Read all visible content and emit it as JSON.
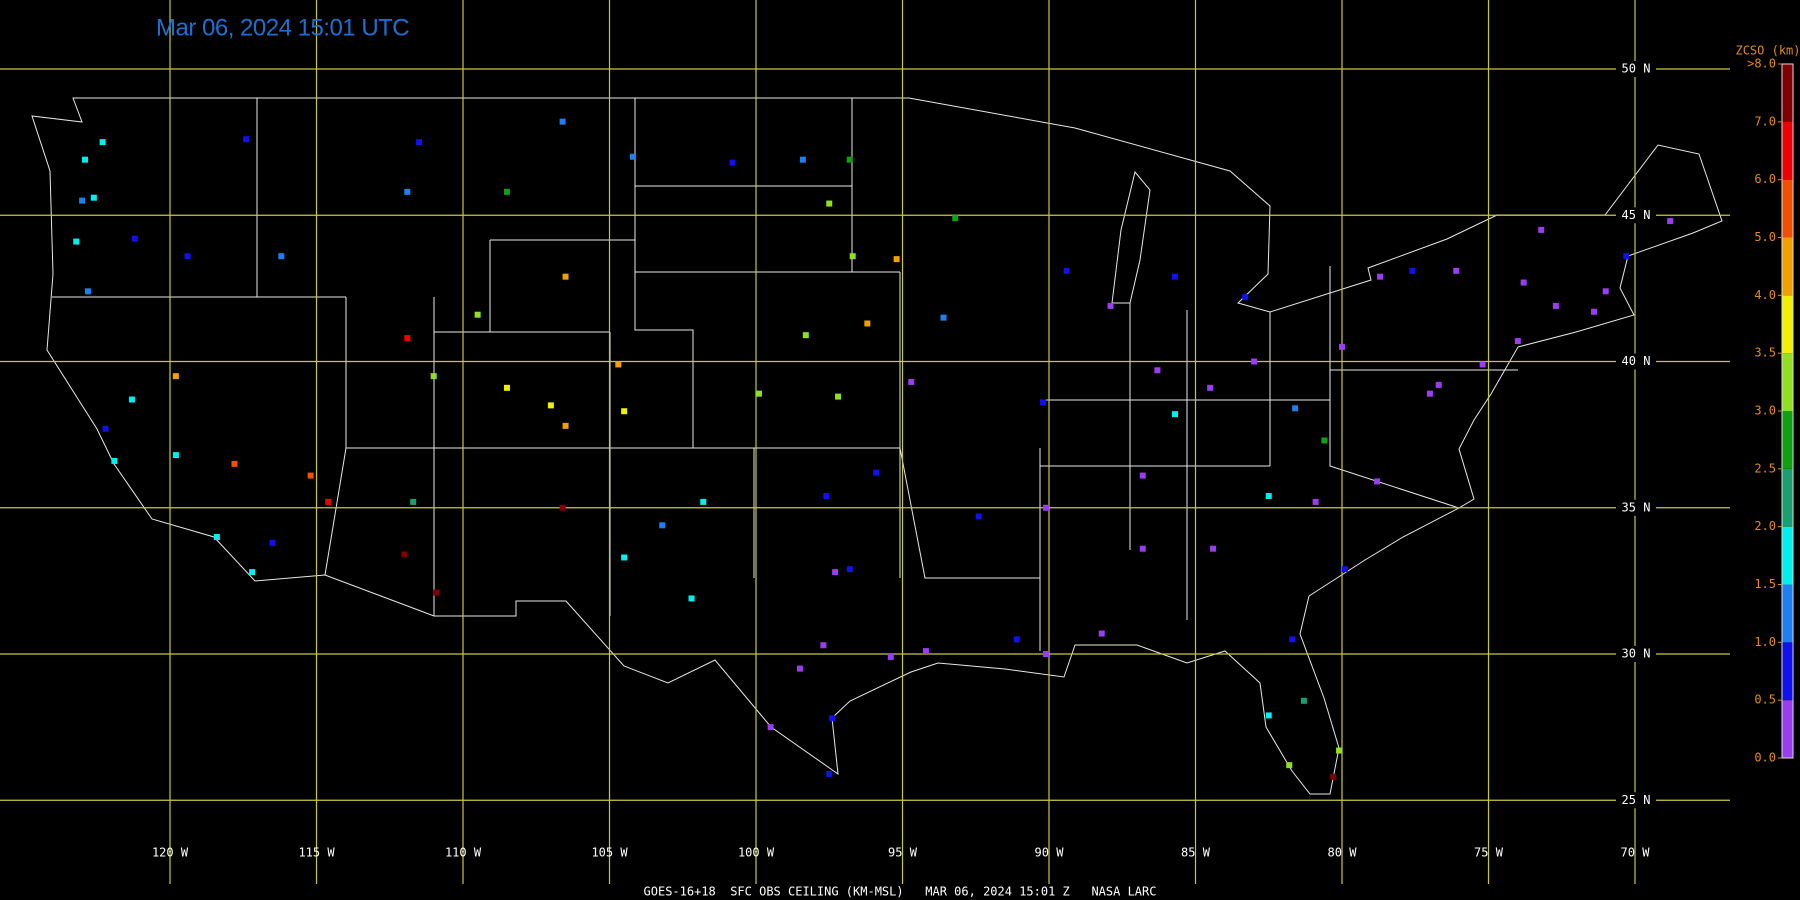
{
  "title": "Mar 06, 2024 15:01 UTC",
  "footer": "GOES-16+18  SFC OBS CEILING (KM-MSL)   MAR 06, 2024 15:01 Z   NASA LARC",
  "map": {
    "grid_color": "#c8c83c",
    "lonticks": [
      {
        "value": -120,
        "label": "120 W"
      },
      {
        "value": -115,
        "label": "115 W"
      },
      {
        "value": -110,
        "label": "110 W"
      },
      {
        "value": -105,
        "label": "105 W"
      },
      {
        "value": -100,
        "label": "100 W"
      },
      {
        "value": -95,
        "label": "95 W"
      },
      {
        "value": -90,
        "label": "90 W"
      },
      {
        "value": -85,
        "label": "85 W"
      },
      {
        "value": -80,
        "label": "80 W"
      },
      {
        "value": -75,
        "label": "75 W"
      },
      {
        "value": -70,
        "label": "70 W"
      }
    ],
    "latticks": [
      {
        "value": 50,
        "label": "50 N"
      },
      {
        "value": 45,
        "label": "45 N"
      },
      {
        "value": 40,
        "label": "40 N"
      },
      {
        "value": 35,
        "label": "35 N"
      },
      {
        "value": 30,
        "label": "30 N"
      },
      {
        "value": 25,
        "label": "25 N"
      }
    ],
    "stations": [
      [
        -122.3,
        47.5,
        1.7
      ],
      [
        -122.9,
        46.9,
        1.7
      ],
      [
        -123,
        45.5,
        1.2
      ],
      [
        -122.6,
        45.6,
        1.8
      ],
      [
        -117.4,
        47.6,
        0.9
      ],
      [
        -119.4,
        43.6,
        0.8
      ],
      [
        -121.2,
        44.2,
        0.7
      ],
      [
        -123.2,
        44.1,
        1.8
      ],
      [
        -122.8,
        42.4,
        1.2
      ],
      [
        -121.3,
        38.7,
        1.8
      ],
      [
        -122.2,
        37.7,
        0.8
      ],
      [
        -121.9,
        36.6,
        1.8
      ],
      [
        -119.8,
        36.8,
        1.6
      ],
      [
        -118.4,
        34,
        1.6
      ],
      [
        -117.2,
        32.8,
        1.7
      ],
      [
        -116.5,
        33.8,
        0.6
      ],
      [
        -119.8,
        39.5,
        4.3
      ],
      [
        -117.8,
        36.5,
        5.2
      ],
      [
        -115.2,
        36.1,
        5.5
      ],
      [
        -114.6,
        35.2,
        6.5
      ],
      [
        -116.2,
        43.6,
        1.2
      ],
      [
        -111.9,
        45.8,
        1.1
      ],
      [
        -108.5,
        45.8,
        2.8
      ],
      [
        -111.5,
        47.5,
        0.8
      ],
      [
        -106.6,
        48.2,
        1.2
      ],
      [
        -104.2,
        47,
        1.0
      ],
      [
        -106.5,
        42.9,
        4.2
      ],
      [
        -109.5,
        41.6,
        3.0
      ],
      [
        -111.9,
        40.8,
        6.7
      ],
      [
        -111,
        39.5,
        3.1
      ],
      [
        -108.5,
        39.1,
        3.8
      ],
      [
        -104.7,
        39.9,
        4.3
      ],
      [
        -107,
        38.5,
        3.9
      ],
      [
        -104.5,
        38.3,
        3.6
      ],
      [
        -106.5,
        37.8,
        4.7
      ],
      [
        -111.7,
        35.2,
        2.1
      ],
      [
        -112,
        33.4,
        7.2
      ],
      [
        -110.9,
        32.1,
        7.5
      ],
      [
        -106.6,
        35,
        7.8
      ],
      [
        -104.5,
        33.3,
        1.7
      ],
      [
        -103.2,
        34.4,
        1.2
      ],
      [
        -100.8,
        46.8,
        0.8
      ],
      [
        -98.4,
        46.9,
        1.0
      ],
      [
        -96.8,
        46.9,
        2.5
      ],
      [
        -96.7,
        43.6,
        3.3
      ],
      [
        -97.5,
        45.4,
        3.1
      ],
      [
        -96.2,
        41.3,
        4.5
      ],
      [
        -98.3,
        40.9,
        3.3
      ],
      [
        -97.2,
        38.8,
        3.4
      ],
      [
        -99.9,
        38.9,
        3.1
      ],
      [
        -95.2,
        43.5,
        4.2
      ],
      [
        -97.6,
        35.4,
        0.8
      ],
      [
        -95.9,
        36.2,
        0.7
      ],
      [
        -97.3,
        32.8,
        0.3
      ],
      [
        -96.8,
        32.9,
        0.6
      ],
      [
        -95.4,
        29.9,
        0.3
      ],
      [
        -94.2,
        30.1,
        0.4
      ],
      [
        -98.5,
        29.5,
        0.2
      ],
      [
        -97.7,
        30.3,
        0.4
      ],
      [
        -97.4,
        27.8,
        0.8
      ],
      [
        -101.8,
        35.2,
        1.8
      ],
      [
        -102.2,
        31.9,
        1.5
      ],
      [
        -97.5,
        25.9,
        0.6
      ],
      [
        -99.5,
        27.5,
        0.2
      ],
      [
        -93.2,
        44.9,
        2.6
      ],
      [
        -93.6,
        41.5,
        1.2
      ],
      [
        -90.2,
        38.6,
        0.8
      ],
      [
        -87.9,
        41.9,
        0.3
      ],
      [
        -86.3,
        39.7,
        0.3
      ],
      [
        -84.5,
        39.1,
        0.4
      ],
      [
        -83,
        40,
        0.2
      ],
      [
        -83.3,
        42.2,
        0.6
      ],
      [
        -85.7,
        42.9,
        0.7
      ],
      [
        -89.4,
        43.1,
        0.8
      ],
      [
        -94.7,
        39.3,
        0.2
      ],
      [
        -92.4,
        34.7,
        0.6
      ],
      [
        -90.1,
        35,
        0.3
      ],
      [
        -86.8,
        36.1,
        0.3
      ],
      [
        -84.4,
        33.6,
        0.4
      ],
      [
        -86.8,
        33.6,
        0.4
      ],
      [
        -90.1,
        30,
        0.3
      ],
      [
        -91.1,
        30.5,
        0.8
      ],
      [
        -88.2,
        30.7,
        0.3
      ],
      [
        -81.7,
        30.5,
        0.5
      ],
      [
        -82.5,
        27.9,
        1.6
      ],
      [
        -81.3,
        28.4,
        2.0
      ],
      [
        -80.3,
        25.8,
        7.0
      ],
      [
        -80.1,
        26.7,
        3.4
      ],
      [
        -81.8,
        26.2,
        3.2
      ],
      [
        -80.9,
        35.2,
        0.3
      ],
      [
        -78.8,
        35.9,
        0.2
      ],
      [
        -79.9,
        32.9,
        0.7
      ],
      [
        -80.6,
        37.3,
        2.7
      ],
      [
        -81.6,
        38.4,
        1.2
      ],
      [
        -85.7,
        38.2,
        1.7
      ],
      [
        -82.5,
        35.4,
        1.5
      ],
      [
        -77,
        38.9,
        0.3
      ],
      [
        -76.7,
        39.2,
        0.3
      ],
      [
        -75.2,
        39.9,
        0.2
      ],
      [
        -74,
        40.7,
        0.3
      ],
      [
        -73.8,
        42.7,
        0.4
      ],
      [
        -76.1,
        43.1,
        0.3
      ],
      [
        -78.7,
        42.9,
        0.3
      ],
      [
        -71,
        42.4,
        0.3
      ],
      [
        -70.3,
        43.6,
        0.8
      ],
      [
        -68.8,
        44.8,
        0.3
      ],
      [
        -72.7,
        41.9,
        0.4
      ],
      [
        -80,
        40.5,
        0.3
      ],
      [
        -77.6,
        43.1,
        0.7
      ],
      [
        -73.2,
        44.5,
        0.3
      ],
      [
        -71.4,
        41.7,
        0.3
      ]
    ]
  },
  "colorbar": {
    "title": "ZCSO (km)",
    "ticks": [
      {
        "value": 0,
        "label": "0.0"
      },
      {
        "value": 0.5,
        "label": "0.5"
      },
      {
        "value": 1,
        "label": "1.0"
      },
      {
        "value": 1.5,
        "label": "1.5"
      },
      {
        "value": 2,
        "label": "2.0"
      },
      {
        "value": 2.5,
        "label": "2.5"
      },
      {
        "value": 3,
        "label": "3.0"
      },
      {
        "value": 3.5,
        "label": "3.5"
      },
      {
        "value": 4,
        "label": "4.0"
      },
      {
        "value": 5,
        "label": "5.0"
      },
      {
        "value": 6,
        "label": "6.0"
      },
      {
        "value": 7,
        "label": "7.0"
      },
      {
        "value": 8,
        "label": ">8.0"
      }
    ],
    "colors": [
      "#9a3cf0",
      "#1010f0",
      "#1e7ff0",
      "#00f0f0",
      "#1aa070",
      "#10a010",
      "#90e020",
      "#f0f000",
      "#f0a000",
      "#f05000",
      "#f00000",
      "#800000"
    ]
  }
}
